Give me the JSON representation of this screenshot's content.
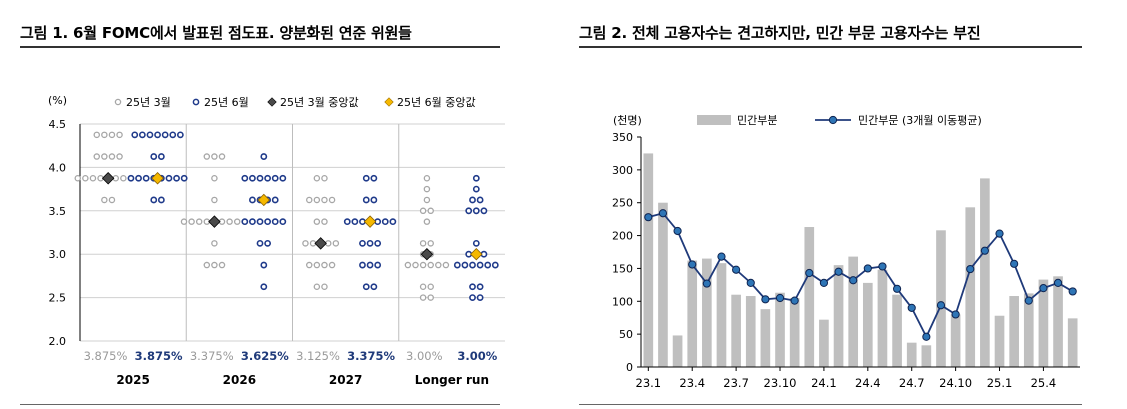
{
  "left_panel": {
    "title": "그림 1. 6월 FOMC에서 발표된 점도표. 양분화된 연준 위원들"
  },
  "right_panel": {
    "title": "그림 2. 전체 고용자수는 견고하지만, 민간 부문 고용자수는 부진"
  },
  "colors": {
    "march_dot": "#a6a6a6",
    "june_dot": "#1f3a8a",
    "march_median": "#4a4a4a",
    "june_median": "#f5b800",
    "bar": "#bfbfbf",
    "line": "#1f3a7a",
    "line_marker": "#2e75b6"
  },
  "chart_data": [
    {
      "type": "scatter",
      "ylabel": "(%)",
      "ylim": [
        2.0,
        4.5
      ],
      "y_ticks": [
        "4.5",
        "4.0",
        "3.5",
        "3.0",
        "2.5",
        "2.0"
      ],
      "legend": [
        "25년 3월",
        "25년 6월",
        "25년 3월 중앙값",
        "25년 6월 중앙값"
      ],
      "legend_placement": "top",
      "groups": [
        {
          "label": "2025",
          "march_median_label": "3.875%",
          "june_median_label": "3.875%",
          "march_median": 3.875,
          "june_median": 3.875,
          "march": [
            {
              "rate": 4.375,
              "count": 4
            },
            {
              "rate": 4.125,
              "count": 4
            },
            {
              "rate": 3.875,
              "count": 9
            },
            {
              "rate": 3.625,
              "count": 2
            }
          ],
          "june": [
            {
              "rate": 4.375,
              "count": 7
            },
            {
              "rate": 4.125,
              "count": 2
            },
            {
              "rate": 3.875,
              "count": 8
            },
            {
              "rate": 3.625,
              "count": 2
            }
          ]
        },
        {
          "label": "2026",
          "march_median_label": "3.375%",
          "june_median_label": "3.625%",
          "march_median": 3.375,
          "june_median": 3.625,
          "march": [
            {
              "rate": 4.125,
              "count": 3
            },
            {
              "rate": 3.875,
              "count": 1
            },
            {
              "rate": 3.625,
              "count": 1
            },
            {
              "rate": 3.375,
              "count": 9
            },
            {
              "rate": 3.125,
              "count": 1
            },
            {
              "rate": 2.875,
              "count": 3
            }
          ],
          "june": [
            {
              "rate": 4.125,
              "count": 1
            },
            {
              "rate": 3.875,
              "count": 6
            },
            {
              "rate": 3.625,
              "count": 4
            },
            {
              "rate": 3.375,
              "count": 6
            },
            {
              "rate": 3.125,
              "count": 2
            },
            {
              "rate": 2.875,
              "count": 1
            },
            {
              "rate": 2.625,
              "count": 1
            }
          ]
        },
        {
          "label": "2027",
          "march_median_label": "3.125%",
          "june_median_label": "3.375%",
          "march_median": 3.125,
          "june_median": 3.375,
          "march": [
            {
              "rate": 3.875,
              "count": 2
            },
            {
              "rate": 3.625,
              "count": 4
            },
            {
              "rate": 3.375,
              "count": 2
            },
            {
              "rate": 3.125,
              "count": 5
            },
            {
              "rate": 2.875,
              "count": 4
            },
            {
              "rate": 2.625,
              "count": 2
            }
          ],
          "june": [
            {
              "rate": 3.875,
              "count": 2
            },
            {
              "rate": 3.625,
              "count": 2
            },
            {
              "rate": 3.375,
              "count": 7
            },
            {
              "rate": 3.125,
              "count": 3
            },
            {
              "rate": 2.875,
              "count": 3
            },
            {
              "rate": 2.625,
              "count": 2
            }
          ]
        },
        {
          "label": "Longer run",
          "march_median_label": "3.00%",
          "june_median_label": "3.00%",
          "march_median": 3.0,
          "june_median": 3.0,
          "march": [
            {
              "rate": 3.875,
              "count": 1
            },
            {
              "rate": 3.75,
              "count": 1
            },
            {
              "rate": 3.625,
              "count": 1
            },
            {
              "rate": 3.5,
              "count": 2
            },
            {
              "rate": 3.375,
              "count": 1
            },
            {
              "rate": 3.125,
              "count": 2
            },
            {
              "rate": 3.0,
              "count": 2
            },
            {
              "rate": 2.875,
              "count": 6
            },
            {
              "rate": 2.625,
              "count": 2
            },
            {
              "rate": 2.5,
              "count": 2
            }
          ],
          "june": [
            {
              "rate": 3.875,
              "count": 1
            },
            {
              "rate": 3.75,
              "count": 1
            },
            {
              "rate": 3.625,
              "count": 2
            },
            {
              "rate": 3.5,
              "count": 3
            },
            {
              "rate": 3.125,
              "count": 1
            },
            {
              "rate": 3.0,
              "count": 3
            },
            {
              "rate": 2.875,
              "count": 6
            },
            {
              "rate": 2.625,
              "count": 2
            },
            {
              "rate": 2.5,
              "count": 2
            }
          ]
        }
      ]
    },
    {
      "type": "bar",
      "ylabel": "(천명)",
      "ylim": [
        0,
        350
      ],
      "y_ticks": [
        0,
        50,
        100,
        150,
        200,
        250,
        300,
        350
      ],
      "x_tick_labels": [
        "23.1",
        "23.4",
        "23.7",
        "23.10",
        "24.1",
        "24.4",
        "24.7",
        "24.10",
        "25.1",
        "25.4"
      ],
      "legend_placement": "top",
      "series": [
        {
          "name": "민간부분",
          "kind": "bar",
          "values": [
            325,
            250,
            48,
            162,
            165,
            158,
            110,
            108,
            88,
            113,
            105,
            213,
            72,
            155,
            168,
            128,
            148,
            110,
            37,
            33,
            208,
            80,
            243,
            287,
            78,
            108,
            112,
            133,
            138,
            74
          ]
        },
        {
          "name": "민간부문 (3개월 이동평균)",
          "kind": "line",
          "values": [
            228,
            234,
            207,
            156,
            127,
            168,
            148,
            128,
            103,
            105,
            101,
            143,
            128,
            145,
            132,
            150,
            153,
            119,
            90,
            46,
            94,
            80,
            149,
            177,
            203,
            157,
            101,
            120,
            128,
            115
          ]
        }
      ]
    }
  ]
}
